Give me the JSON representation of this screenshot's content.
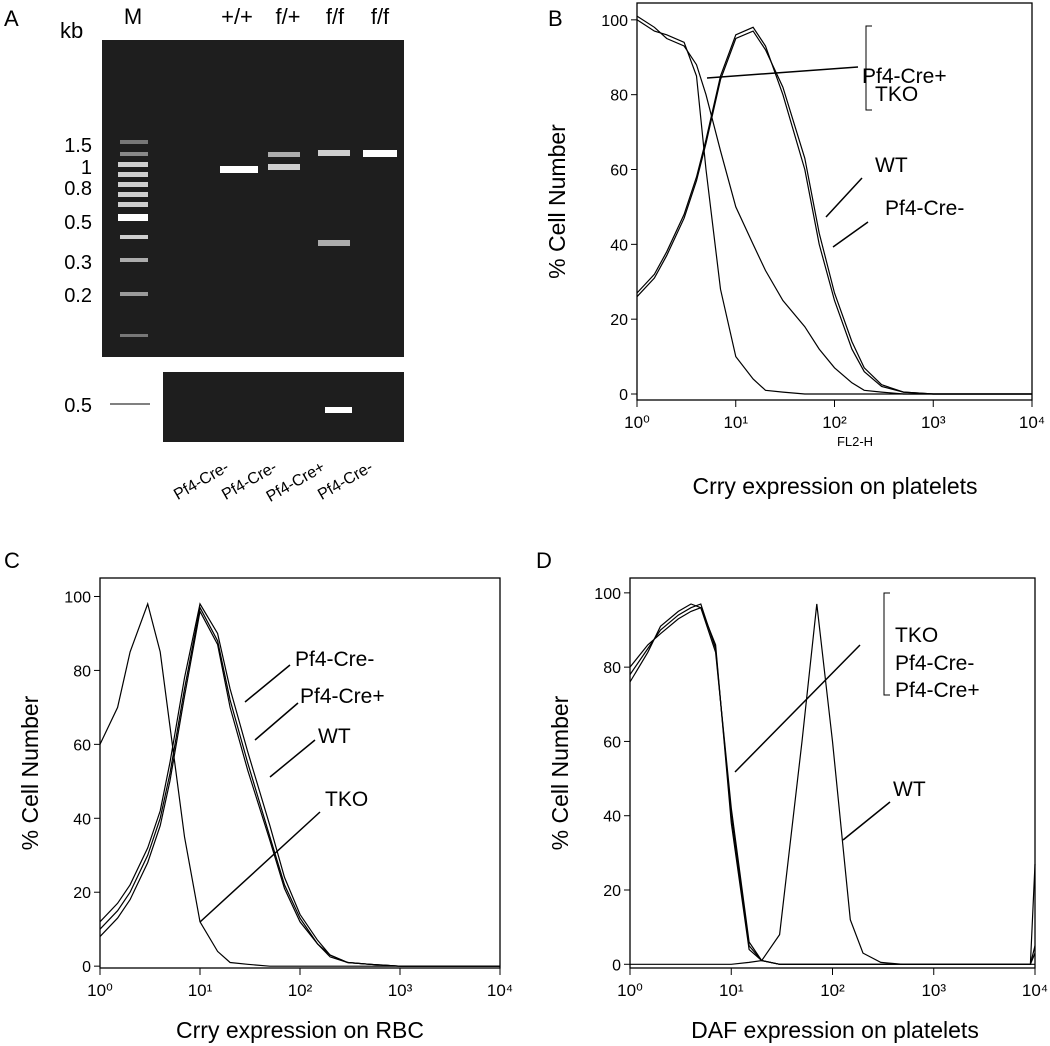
{
  "gel": {
    "panel": "A",
    "kb": "kb",
    "lanes": [
      "M",
      "+/+",
      "f/+",
      "f/f",
      "f/f"
    ],
    "sizes": [
      "1.5",
      "1",
      "0.8",
      "0.5",
      "0.3",
      "0.2"
    ],
    "lower_size": "0.5",
    "genotypes": [
      "Pf4-Cre-",
      "Pf4-Cre-",
      "Pf4-Cre+",
      "Pf4-Cre-"
    ]
  },
  "chart_data": [
    {
      "type": "line",
      "panel": "B",
      "xlabel": "Crry expression on platelets",
      "x_sublabel": "FL2-H",
      "ylabel": "% Cell Number",
      "log_x": true,
      "grid": false,
      "x": [
        1,
        1.5,
        2,
        3,
        4,
        5,
        7,
        10,
        15,
        20,
        30,
        50,
        70,
        100,
        150,
        200,
        300,
        500,
        1000,
        10000
      ],
      "xlim": [
        1,
        10000
      ],
      "ylim": [
        -1.6,
        104.5
      ],
      "yticks": [
        0,
        20,
        40,
        60,
        80,
        100
      ],
      "xticks": [
        {
          "value": 1,
          "label": "10⁰"
        },
        {
          "value": 10,
          "label": "10¹"
        },
        {
          "value": 100,
          "label": "10²"
        },
        {
          "value": 1000,
          "label": "10³"
        },
        {
          "value": 10000,
          "label": "10⁴"
        }
      ],
      "series": [
        {
          "name": "Pf4-Cre+",
          "color": "#000000",
          "values": [
            100,
            97,
            96,
            94,
            85,
            60,
            28,
            10,
            4,
            1,
            0.5,
            0,
            0,
            0,
            0,
            0,
            0,
            0,
            0,
            0
          ]
        },
        {
          "name": "TKO",
          "color": "#000000",
          "values": [
            101,
            98,
            95,
            93,
            88,
            80,
            65,
            50,
            40,
            33,
            25,
            18,
            12,
            7,
            3,
            1,
            0.5,
            0,
            0,
            0
          ]
        },
        {
          "name": "WT",
          "color": "#000000",
          "values": [
            27,
            32,
            38,
            48,
            58,
            68,
            85,
            96,
            98,
            93,
            80,
            60,
            40,
            25,
            12,
            6,
            2,
            0.5,
            0,
            0
          ]
        },
        {
          "name": "Pf4-Cre-",
          "color": "#000000",
          "values": [
            26,
            31,
            37,
            47,
            57,
            67,
            84,
            95,
            97,
            92,
            82,
            63,
            43,
            27,
            14,
            7,
            2.5,
            0.5,
            0,
            0
          ]
        }
      ]
    },
    {
      "type": "line",
      "panel": "C",
      "xlabel": "Crry expression on RBC",
      "ylabel": "% Cell Number",
      "log_x": true,
      "grid": false,
      "x": [
        1,
        1.5,
        2,
        3,
        4,
        5,
        7,
        10,
        15,
        20,
        30,
        50,
        70,
        100,
        150,
        200,
        300,
        500,
        1000,
        10000
      ],
      "xlim": [
        1,
        10000
      ],
      "ylim": [
        -0.5,
        105
      ],
      "yticks": [
        0,
        20,
        40,
        60,
        80,
        100
      ],
      "xticks": [
        {
          "value": 1,
          "label": "10⁰"
        },
        {
          "value": 10,
          "label": "10¹"
        },
        {
          "value": 100,
          "label": "10²"
        },
        {
          "value": 1000,
          "label": "10³"
        },
        {
          "value": 10000,
          "label": "10⁴"
        }
      ],
      "series": [
        {
          "name": "Pf4-Cre-",
          "color": "#000000",
          "values": [
            12,
            17,
            22,
            32,
            42,
            55,
            78,
            98,
            90,
            75,
            58,
            38,
            24,
            14,
            7,
            3,
            1,
            0.5,
            0,
            0
          ]
        },
        {
          "name": "Pf4-Cre+",
          "color": "#000000",
          "values": [
            10,
            15,
            20,
            30,
            40,
            52,
            75,
            97,
            88,
            72,
            55,
            35,
            22,
            13,
            6,
            3,
            1,
            0.5,
            0,
            0
          ]
        },
        {
          "name": "WT",
          "color": "#000000",
          "values": [
            8,
            13,
            18,
            28,
            38,
            50,
            73,
            96,
            87,
            70,
            53,
            34,
            21,
            12,
            6,
            2.5,
            1,
            0.5,
            0,
            0
          ]
        },
        {
          "name": "TKO",
          "color": "#000000",
          "values": [
            60,
            70,
            85,
            98,
            85,
            65,
            35,
            12,
            4,
            1,
            0.5,
            0,
            0,
            0,
            0,
            0,
            0,
            0,
            0,
            0
          ]
        }
      ]
    },
    {
      "type": "line",
      "panel": "D",
      "xlabel": "DAF expression on platelets",
      "ylabel": "% Cell Number",
      "log_x": true,
      "grid": false,
      "x": [
        1,
        1.5,
        2,
        3,
        4,
        5,
        7,
        10,
        15,
        20,
        30,
        50,
        70,
        100,
        150,
        200,
        300,
        500,
        1000,
        9000,
        10000
      ],
      "xlim": [
        1,
        10000
      ],
      "ylim": [
        -1,
        104
      ],
      "yticks": [
        0,
        20,
        40,
        60,
        80,
        100
      ],
      "xticks": [
        {
          "value": 1,
          "label": "10⁰"
        },
        {
          "value": 10,
          "label": "10¹"
        },
        {
          "value": 100,
          "label": "10²"
        },
        {
          "value": 1000,
          "label": "10³"
        },
        {
          "value": 10000,
          "label": "10⁴"
        }
      ],
      "series": [
        {
          "name": "TKO",
          "color": "#000000",
          "values": [
            78,
            85,
            90,
            94,
            96,
            97,
            85,
            40,
            5,
            1,
            0,
            0,
            0,
            0,
            0,
            0,
            0,
            0,
            0,
            0,
            27
          ]
        },
        {
          "name": "Pf4-Cre-",
          "color": "#000000",
          "values": [
            80,
            86,
            89,
            93,
            95,
            96,
            84,
            42,
            6,
            1,
            0,
            0,
            0,
            0,
            0,
            0,
            0,
            0,
            0,
            0,
            5
          ]
        },
        {
          "name": "Pf4-Cre+",
          "color": "#000000",
          "values": [
            76,
            84,
            91,
            95,
            97,
            96,
            86,
            38,
            4,
            1,
            0,
            0,
            0,
            0,
            0,
            0,
            0,
            0,
            0,
            0,
            3
          ]
        },
        {
          "name": "WT",
          "color": "#000000",
          "values": [
            0,
            0,
            0,
            0,
            0,
            0,
            0,
            0,
            0.5,
            1,
            8,
            60,
            97,
            60,
            12,
            3,
            0.5,
            0,
            0,
            0,
            0
          ]
        }
      ]
    }
  ]
}
